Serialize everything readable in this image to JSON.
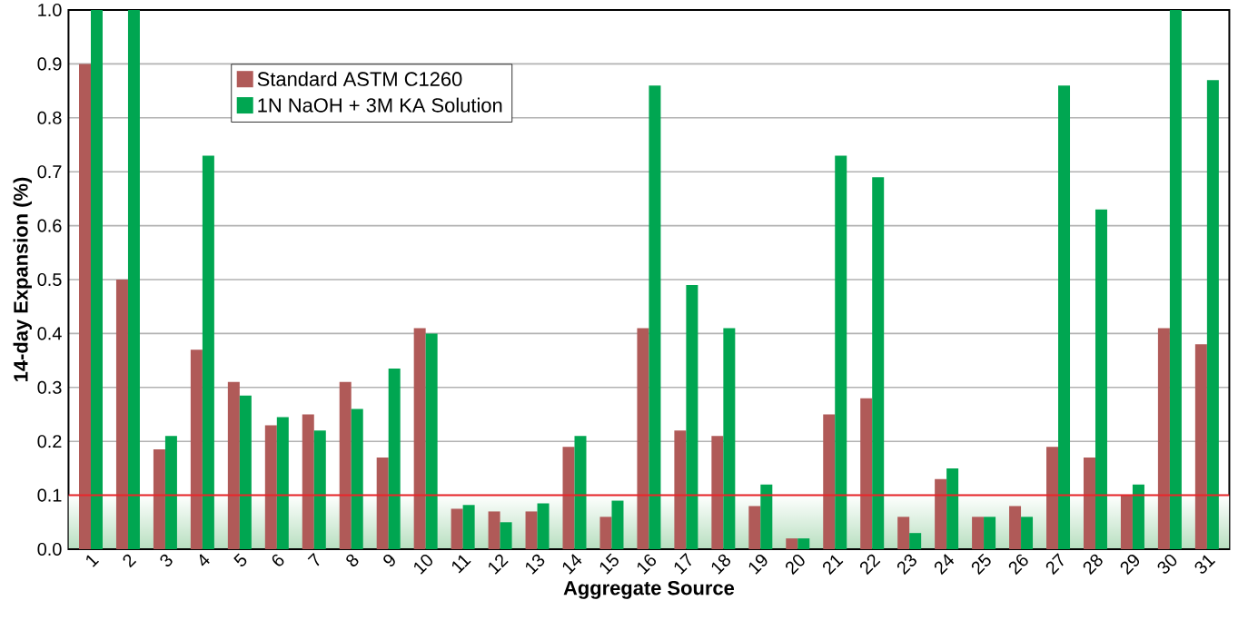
{
  "chart_data": {
    "type": "bar",
    "xlabel": "Aggregate Source",
    "ylabel": "14-day Expansion (%)",
    "categories": [
      "1",
      "2",
      "3",
      "4",
      "5",
      "6",
      "7",
      "8",
      "9",
      "10",
      "11",
      "12",
      "13",
      "14",
      "15",
      "16",
      "17",
      "18",
      "19",
      "20",
      "21",
      "22",
      "23",
      "24",
      "25",
      "26",
      "27",
      "28",
      "29",
      "30",
      "31"
    ],
    "series": [
      {
        "name": "Standard ASTM C1260",
        "color": "#b05a58",
        "values": [
          0.9,
          0.5,
          0.185,
          0.37,
          0.31,
          0.23,
          0.25,
          0.31,
          0.17,
          0.41,
          0.075,
          0.07,
          0.07,
          0.19,
          0.06,
          0.41,
          0.22,
          0.21,
          0.08,
          0.02,
          0.25,
          0.28,
          0.06,
          0.13,
          0.06,
          0.08,
          0.19,
          0.17,
          0.1,
          0.41,
          0.38
        ]
      },
      {
        "name": "1N NaOH + 3M KA Solution",
        "color": "#00a651",
        "values": [
          1.0,
          1.0,
          0.21,
          0.73,
          0.285,
          0.245,
          0.22,
          0.26,
          0.335,
          0.4,
          0.082,
          0.05,
          0.085,
          0.21,
          0.09,
          0.86,
          0.49,
          0.41,
          0.12,
          0.02,
          0.73,
          0.69,
          0.03,
          0.15,
          0.06,
          0.06,
          0.86,
          0.63,
          0.12,
          1.0,
          0.87
        ]
      }
    ],
    "ylim": [
      0,
      1.0
    ],
    "yticks": [
      {
        "value": 0,
        "label": "0.0"
      },
      0.1,
      0.2,
      0.3,
      0.4,
      0.5,
      0.6,
      0.7,
      0.8,
      0.9,
      {
        "value": 1.0,
        "label": "1.0"
      }
    ],
    "ref_lines": [
      {
        "axis": "y",
        "value": 0.1,
        "color": "#e8262a"
      }
    ],
    "bands": [
      {
        "axis": "y",
        "from": 0,
        "to": 0.1,
        "color": "#b8dfc0"
      }
    ],
    "grid": "y",
    "legend": "top left"
  }
}
